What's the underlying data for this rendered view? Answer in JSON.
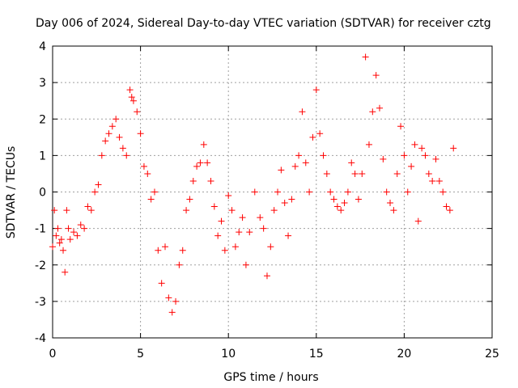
{
  "chart_data": {
    "type": "scatter",
    "title": "Day 006 of 2024, Sidereal Day-to-day VTEC variation (SDTVAR) for receiver cztg",
    "xlabel": "GPS time / hours",
    "ylabel": "SDTVAR / TECUs",
    "xlim": [
      0,
      25
    ],
    "ylim": [
      -4,
      4
    ],
    "xticks": [
      0,
      5,
      10,
      15,
      20,
      25
    ],
    "yticks": [
      -4,
      -3,
      -2,
      -1,
      0,
      1,
      2,
      3,
      4
    ],
    "grid": true,
    "marker": "plus",
    "color": "#ff0000",
    "series": [
      {
        "name": "SDTVAR",
        "x": [
          0.0,
          0.1,
          0.2,
          0.3,
          0.4,
          0.5,
          0.6,
          0.7,
          0.8,
          0.9,
          1.0,
          1.2,
          1.4,
          1.6,
          1.8,
          2.0,
          2.2,
          2.4,
          2.6,
          2.8,
          3.0,
          3.2,
          3.4,
          3.6,
          3.8,
          4.0,
          4.2,
          4.4,
          4.5,
          4.6,
          4.8,
          5.0,
          5.2,
          5.4,
          5.6,
          5.8,
          6.0,
          6.2,
          6.4,
          6.6,
          6.8,
          7.0,
          7.2,
          7.4,
          7.6,
          7.8,
          8.0,
          8.2,
          8.4,
          8.6,
          8.8,
          9.0,
          9.2,
          9.4,
          9.6,
          9.8,
          10.0,
          10.2,
          10.4,
          10.6,
          10.8,
          11.0,
          11.2,
          11.5,
          11.8,
          12.0,
          12.2,
          12.4,
          12.6,
          12.8,
          13.0,
          13.2,
          13.4,
          13.6,
          13.8,
          14.0,
          14.2,
          14.4,
          14.6,
          14.8,
          15.0,
          15.2,
          15.4,
          15.6,
          15.8,
          16.0,
          16.2,
          16.4,
          16.6,
          16.8,
          17.0,
          17.2,
          17.4,
          17.6,
          17.8,
          18.0,
          18.2,
          18.4,
          18.6,
          18.8,
          19.0,
          19.2,
          19.4,
          19.6,
          19.8,
          20.0,
          20.2,
          20.4,
          20.6,
          20.8,
          21.0,
          21.2,
          21.4,
          21.6,
          21.8,
          22.0,
          22.2,
          22.4,
          22.6,
          22.8
        ],
        "y": [
          -1.5,
          -0.5,
          -1.2,
          -1.0,
          -1.4,
          -1.3,
          -1.6,
          -2.2,
          -0.5,
          -1.0,
          -1.3,
          -1.1,
          -1.2,
          -0.9,
          -1.0,
          -0.4,
          -0.5,
          0.0,
          0.2,
          1.0,
          1.4,
          1.6,
          1.8,
          2.0,
          1.5,
          1.2,
          1.0,
          2.8,
          2.6,
          2.5,
          2.2,
          1.6,
          0.7,
          0.5,
          -0.2,
          0.0,
          -1.6,
          -2.5,
          -1.5,
          -2.9,
          -3.3,
          -3.0,
          -2.0,
          -1.6,
          -0.5,
          -0.2,
          0.3,
          0.7,
          0.8,
          1.3,
          0.8,
          0.3,
          -0.4,
          -1.2,
          -0.8,
          -1.6,
          -0.1,
          -0.5,
          -1.5,
          -1.1,
          -0.7,
          -2.0,
          -1.1,
          0.0,
          -0.7,
          -1.0,
          -2.3,
          -1.5,
          -0.5,
          0.0,
          0.6,
          -0.3,
          -1.2,
          -0.2,
          0.7,
          1.0,
          2.2,
          0.8,
          0.0,
          1.5,
          2.8,
          1.6,
          1.0,
          0.5,
          0.0,
          -0.2,
          -0.4,
          -0.5,
          -0.3,
          0.0,
          0.8,
          0.5,
          -0.2,
          0.5,
          3.7,
          1.3,
          2.2,
          3.2,
          2.3,
          0.9,
          0.0,
          -0.3,
          -0.5,
          0.5,
          1.8,
          1.0,
          0.0,
          0.7,
          1.3,
          -0.8,
          1.2,
          1.0,
          0.5,
          0.3,
          0.9,
          0.3,
          0.0,
          -0.4,
          -0.5,
          1.2
        ]
      }
    ]
  }
}
